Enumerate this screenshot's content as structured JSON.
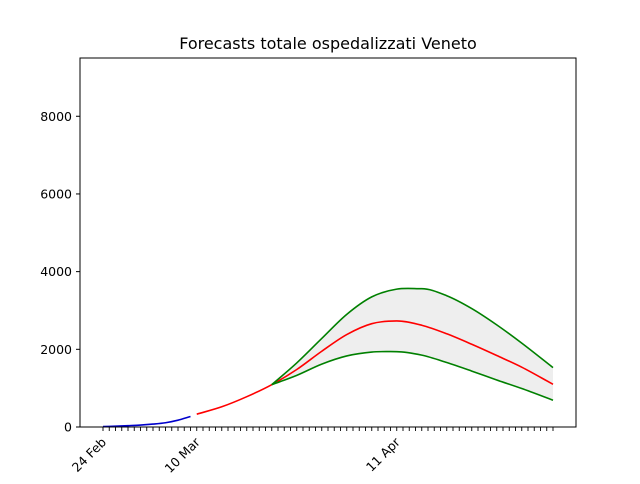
{
  "chart_data": {
    "type": "line",
    "title": "Forecasts totale ospedalizzati Veneto",
    "xlabel": "",
    "ylabel": "",
    "x_axis": {
      "type": "date",
      "start": "2020-02-24",
      "end": "2020-05-06",
      "labeled_ticks": [
        {
          "date": "2020-02-24",
          "label": "24 Feb"
        },
        {
          "date": "2020-03-10",
          "label": "10 Mar"
        },
        {
          "date": "2020-04-11",
          "label": "11 Apr"
        }
      ]
    },
    "ylim": [
      0,
      9500
    ],
    "yticks": [
      0,
      2000,
      4000,
      6000,
      8000
    ],
    "grid": false,
    "legend": "none",
    "series": [
      {
        "role": "observed",
        "color": "#0000cc",
        "points": [
          [
            "2020-02-24",
            10
          ],
          [
            "2020-02-26",
            22
          ],
          [
            "2020-02-28",
            35
          ],
          [
            "2020-03-01",
            50
          ],
          [
            "2020-03-03",
            75
          ],
          [
            "2020-03-05",
            110
          ],
          [
            "2020-03-07",
            175
          ],
          [
            "2020-03-09",
            270
          ]
        ]
      },
      {
        "role": "forecast",
        "color": "#ff0000",
        "points": [
          [
            "2020-03-10",
            330
          ],
          [
            "2020-03-14",
            520
          ],
          [
            "2020-03-18",
            780
          ],
          [
            "2020-03-22",
            1090
          ],
          [
            "2020-03-26",
            1480
          ],
          [
            "2020-03-30",
            1950
          ],
          [
            "2020-04-03",
            2380
          ],
          [
            "2020-04-07",
            2660
          ],
          [
            "2020-04-11",
            2730
          ],
          [
            "2020-04-15",
            2620
          ],
          [
            "2020-04-19",
            2400
          ],
          [
            "2020-04-23",
            2130
          ],
          [
            "2020-04-27",
            1840
          ],
          [
            "2020-05-01",
            1540
          ],
          [
            "2020-05-06",
            1100
          ]
        ]
      },
      {
        "role": "upper-bound",
        "color": "#008000",
        "points": [
          [
            "2020-03-22",
            1090
          ],
          [
            "2020-03-26",
            1650
          ],
          [
            "2020-03-30",
            2280
          ],
          [
            "2020-04-03",
            2900
          ],
          [
            "2020-04-07",
            3350
          ],
          [
            "2020-04-11",
            3550
          ],
          [
            "2020-04-15",
            3560
          ],
          [
            "2020-04-19",
            3380
          ],
          [
            "2020-04-23",
            3050
          ],
          [
            "2020-04-27",
            2630
          ],
          [
            "2020-05-01",
            2160
          ],
          [
            "2020-05-06",
            1530
          ]
        ]
      },
      {
        "role": "lower-bound",
        "color": "#008000",
        "points": [
          [
            "2020-03-22",
            1090
          ],
          [
            "2020-03-26",
            1330
          ],
          [
            "2020-03-30",
            1620
          ],
          [
            "2020-04-03",
            1830
          ],
          [
            "2020-04-07",
            1930
          ],
          [
            "2020-04-11",
            1940
          ],
          [
            "2020-04-15",
            1850
          ],
          [
            "2020-04-19",
            1660
          ],
          [
            "2020-04-23",
            1440
          ],
          [
            "2020-04-27",
            1210
          ],
          [
            "2020-05-01",
            990
          ],
          [
            "2020-05-06",
            690
          ]
        ]
      }
    ],
    "band": {
      "color": "#eeeeee",
      "between": [
        "lower-bound",
        "upper-bound"
      ]
    }
  }
}
